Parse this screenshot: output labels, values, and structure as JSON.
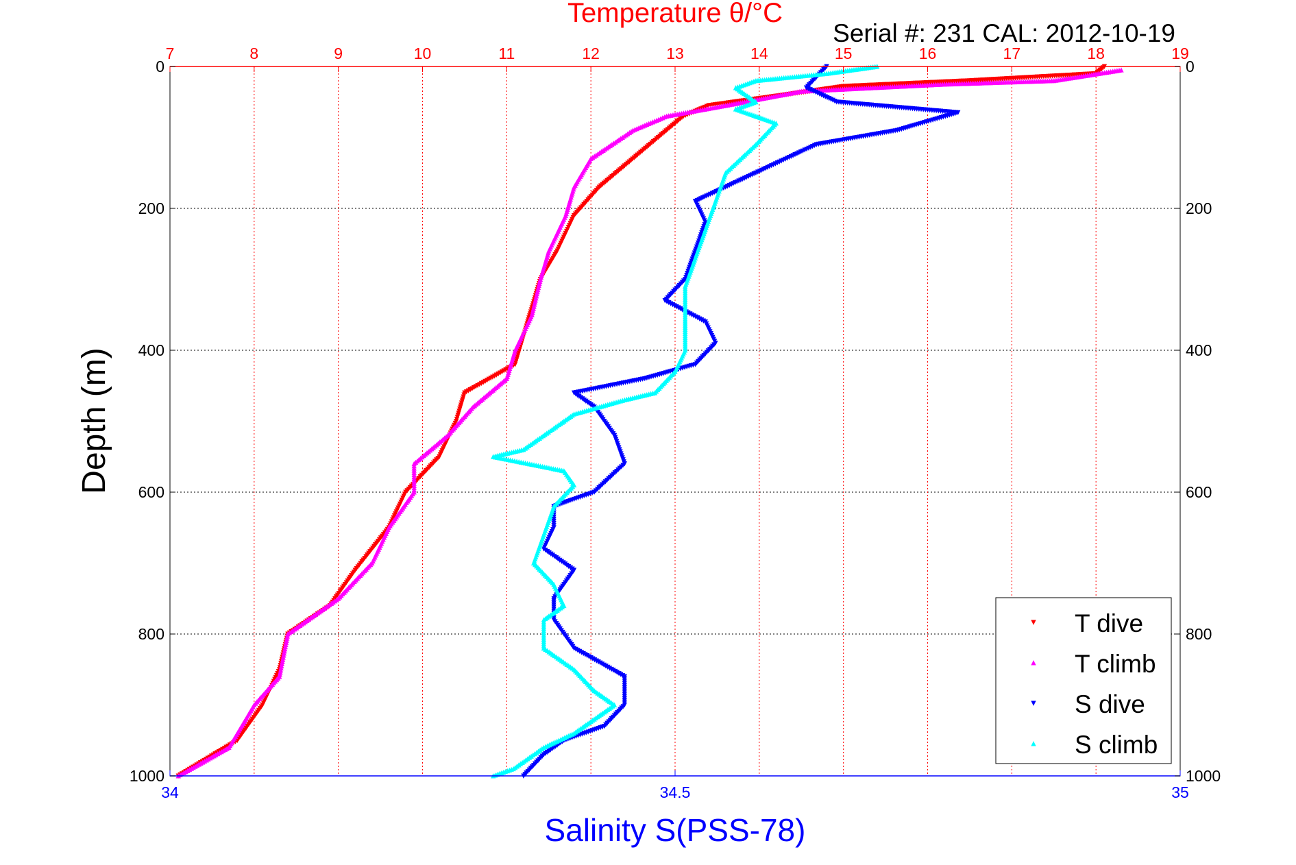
{
  "chart_data": {
    "type": "scatter",
    "title": "Temperature θ/°C",
    "subtitle": "Serial #: 231  CAL: 2012-10-19",
    "ylabel": "Depth (m)",
    "xlabel": "Salinity S(PSS-78)",
    "y_axis": {
      "range": [
        0,
        1000
      ],
      "reversed": true,
      "ticks": [
        0,
        200,
        400,
        600,
        800,
        1000
      ],
      "tick_labels": [
        "0",
        "200",
        "400",
        "600",
        "800",
        "1000"
      ]
    },
    "top_axis": {
      "label": "Temperature θ/°C",
      "range": [
        7,
        19
      ],
      "ticks": [
        7,
        8,
        9,
        10,
        11,
        12,
        13,
        14,
        15,
        16,
        17,
        18,
        19
      ],
      "tick_labels": [
        "7",
        "8",
        "9",
        "10",
        "11",
        "12",
        "13",
        "14",
        "15",
        "16",
        "17",
        "18",
        "19"
      ],
      "color": "#ff0000"
    },
    "bottom_axis": {
      "label": "Salinity S(PSS-78)",
      "range": [
        34,
        35
      ],
      "ticks": [
        34,
        34.5,
        35
      ],
      "tick_labels": [
        "34",
        "34.5",
        "35"
      ],
      "color": "#0000ff"
    },
    "grid": true,
    "legend_position": "bottom-right",
    "series": [
      {
        "name": "T dive",
        "axis": "temperature",
        "color": "#ff0000",
        "marker": "triangle-down",
        "points": [
          [
            18.1,
            0
          ],
          [
            18.0,
            10
          ],
          [
            16.5,
            20
          ],
          [
            15.0,
            28
          ],
          [
            14.3,
            40
          ],
          [
            13.4,
            55
          ],
          [
            13.1,
            70
          ],
          [
            12.8,
            100
          ],
          [
            12.4,
            140
          ],
          [
            12.1,
            170
          ],
          [
            11.8,
            210
          ],
          [
            11.6,
            260
          ],
          [
            11.4,
            300
          ],
          [
            11.3,
            340
          ],
          [
            11.2,
            380
          ],
          [
            11.1,
            420
          ],
          [
            10.5,
            460
          ],
          [
            10.4,
            500
          ],
          [
            10.2,
            550
          ],
          [
            9.8,
            600
          ],
          [
            9.6,
            650
          ],
          [
            9.2,
            710
          ],
          [
            8.9,
            760
          ],
          [
            8.4,
            800
          ],
          [
            8.3,
            850
          ],
          [
            8.1,
            900
          ],
          [
            7.8,
            950
          ],
          [
            7.1,
            1000
          ]
        ]
      },
      {
        "name": "T climb",
        "axis": "temperature",
        "color": "#ff00ff",
        "marker": "triangle-up",
        "points": [
          [
            18.3,
            5
          ],
          [
            17.5,
            20
          ],
          [
            16.2,
            25
          ],
          [
            14.5,
            35
          ],
          [
            13.6,
            55
          ],
          [
            12.9,
            70
          ],
          [
            12.5,
            90
          ],
          [
            12.0,
            130
          ],
          [
            11.8,
            170
          ],
          [
            11.7,
            210
          ],
          [
            11.5,
            260
          ],
          [
            11.4,
            300
          ],
          [
            11.3,
            350
          ],
          [
            11.1,
            400
          ],
          [
            11.0,
            440
          ],
          [
            10.8,
            460
          ],
          [
            10.6,
            480
          ],
          [
            10.3,
            520
          ],
          [
            9.9,
            560
          ],
          [
            9.9,
            600
          ],
          [
            9.6,
            650
          ],
          [
            9.4,
            700
          ],
          [
            9.0,
            750
          ],
          [
            8.4,
            800
          ],
          [
            8.3,
            860
          ],
          [
            8.0,
            900
          ],
          [
            7.7,
            960
          ],
          [
            7.1,
            1000
          ]
        ]
      },
      {
        "name": "S dive",
        "axis": "salinity",
        "color": "#0000ff",
        "marker": "triangle-down",
        "points": [
          [
            34.65,
            0
          ],
          [
            34.63,
            30
          ],
          [
            34.66,
            50
          ],
          [
            34.78,
            65
          ],
          [
            34.72,
            90
          ],
          [
            34.64,
            110
          ],
          [
            34.58,
            150
          ],
          [
            34.55,
            170
          ],
          [
            34.52,
            190
          ],
          [
            34.53,
            220
          ],
          [
            34.52,
            260
          ],
          [
            34.51,
            300
          ],
          [
            34.49,
            330
          ],
          [
            34.53,
            360
          ],
          [
            34.54,
            390
          ],
          [
            34.52,
            420
          ],
          [
            34.47,
            440
          ],
          [
            34.4,
            460
          ],
          [
            34.42,
            480
          ],
          [
            34.44,
            520
          ],
          [
            34.45,
            560
          ],
          [
            34.42,
            600
          ],
          [
            34.38,
            620
          ],
          [
            34.38,
            650
          ],
          [
            34.37,
            680
          ],
          [
            34.4,
            710
          ],
          [
            34.38,
            750
          ],
          [
            34.38,
            780
          ],
          [
            34.4,
            820
          ],
          [
            34.45,
            860
          ],
          [
            34.45,
            900
          ],
          [
            34.43,
            930
          ],
          [
            34.39,
            950
          ],
          [
            34.37,
            970
          ],
          [
            34.35,
            1000
          ]
        ]
      },
      {
        "name": "S climb",
        "axis": "salinity",
        "color": "#00ffff",
        "marker": "triangle-up",
        "points": [
          [
            34.7,
            0
          ],
          [
            34.65,
            10
          ],
          [
            34.58,
            20
          ],
          [
            34.56,
            30
          ],
          [
            34.58,
            50
          ],
          [
            34.56,
            60
          ],
          [
            34.6,
            80
          ],
          [
            34.58,
            110
          ],
          [
            34.55,
            150
          ],
          [
            34.54,
            190
          ],
          [
            34.53,
            230
          ],
          [
            34.52,
            270
          ],
          [
            34.51,
            310
          ],
          [
            34.51,
            350
          ],
          [
            34.51,
            400
          ],
          [
            34.5,
            430
          ],
          [
            34.48,
            460
          ],
          [
            34.45,
            470
          ],
          [
            34.4,
            490
          ],
          [
            34.38,
            510
          ],
          [
            34.35,
            540
          ],
          [
            34.32,
            550
          ],
          [
            34.39,
            570
          ],
          [
            34.4,
            590
          ],
          [
            34.38,
            620
          ],
          [
            34.37,
            660
          ],
          [
            34.36,
            700
          ],
          [
            34.38,
            730
          ],
          [
            34.39,
            760
          ],
          [
            34.37,
            780
          ],
          [
            34.37,
            820
          ],
          [
            34.4,
            850
          ],
          [
            34.42,
            880
          ],
          [
            34.44,
            900
          ],
          [
            34.42,
            920
          ],
          [
            34.4,
            940
          ],
          [
            34.37,
            960
          ],
          [
            34.34,
            990
          ],
          [
            34.32,
            1000
          ]
        ]
      }
    ]
  }
}
